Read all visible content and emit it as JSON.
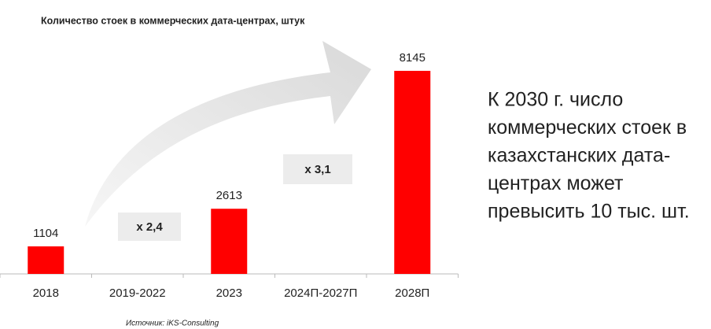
{
  "chart_data": {
    "type": "bar",
    "title": "Количество стоек в коммерческих дата-центрах, штук",
    "categories": [
      "2018",
      "2019-2022",
      "2023",
      "2024П-2027П",
      "2028П"
    ],
    "values": [
      1104,
      null,
      2613,
      null,
      8145
    ],
    "color": "#ff0000",
    "annotations": [
      "x 2,4",
      "x 3,1"
    ],
    "source": "Источник: iKS-Consulting"
  },
  "side_text": [
    "К 2030 г. число",
    "коммерческих стоек в",
    "казахстанских дата-",
    "центрах может",
    "превысить 10 тыс. шт."
  ]
}
